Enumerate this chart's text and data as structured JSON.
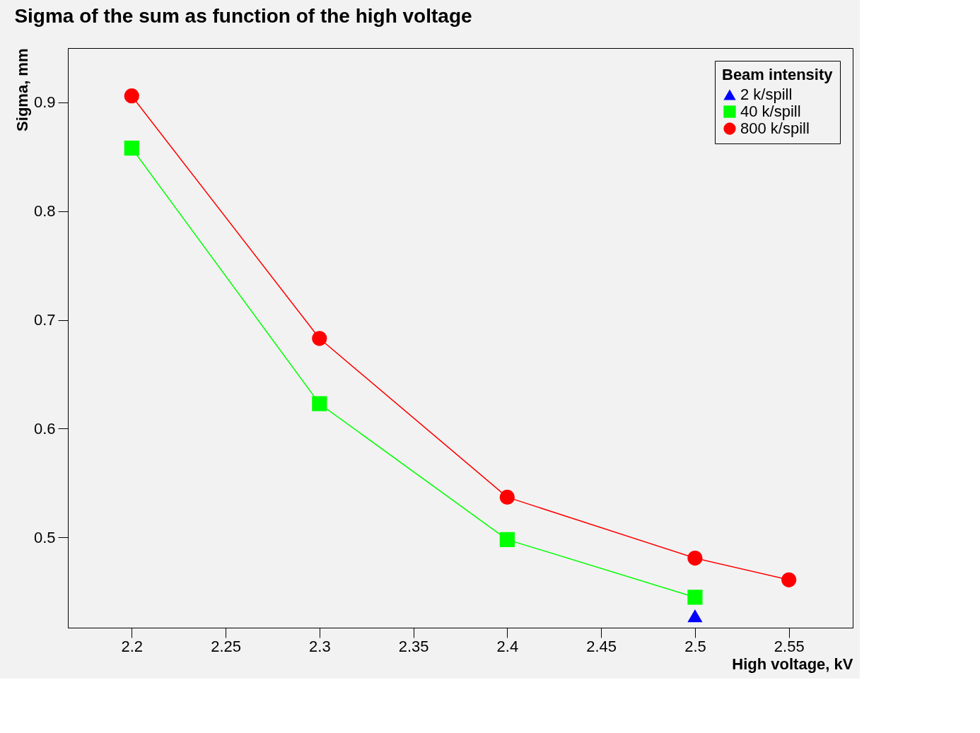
{
  "chart_data": {
    "type": "line",
    "title": "Sigma of the sum as function of the high voltage",
    "xlabel": "High voltage, kV",
    "ylabel": "Sigma, mm",
    "legend_title": "Beam intensity",
    "legend": "top right",
    "grid": false,
    "line_style": "solid",
    "xlim": [
      2.166,
      2.584
    ],
    "xticks": [
      2.2,
      2.25,
      2.3,
      2.35,
      2.4,
      2.45,
      2.5,
      2.55
    ],
    "ylim": [
      0.417,
      0.95
    ],
    "yticks": [
      0.5,
      0.6,
      0.7,
      0.8,
      0.9
    ],
    "series": [
      {
        "name": "2 k/spill",
        "color": "#0000ff",
        "marker": "triangle",
        "x": [
          2.5
        ],
        "values": [
          0.428
        ]
      },
      {
        "name": "40 k/spill",
        "color": "#00ff00",
        "marker": "square",
        "x": [
          2.2,
          2.3,
          2.4,
          2.5
        ],
        "values": [
          0.858,
          0.623,
          0.498,
          0.445
        ]
      },
      {
        "name": "800 k/spill",
        "color": "#ff0000",
        "marker": "circle",
        "x": [
          2.2,
          2.3,
          2.4,
          2.5,
          2.55
        ],
        "values": [
          0.906,
          0.683,
          0.537,
          0.481,
          0.461
        ]
      }
    ]
  }
}
